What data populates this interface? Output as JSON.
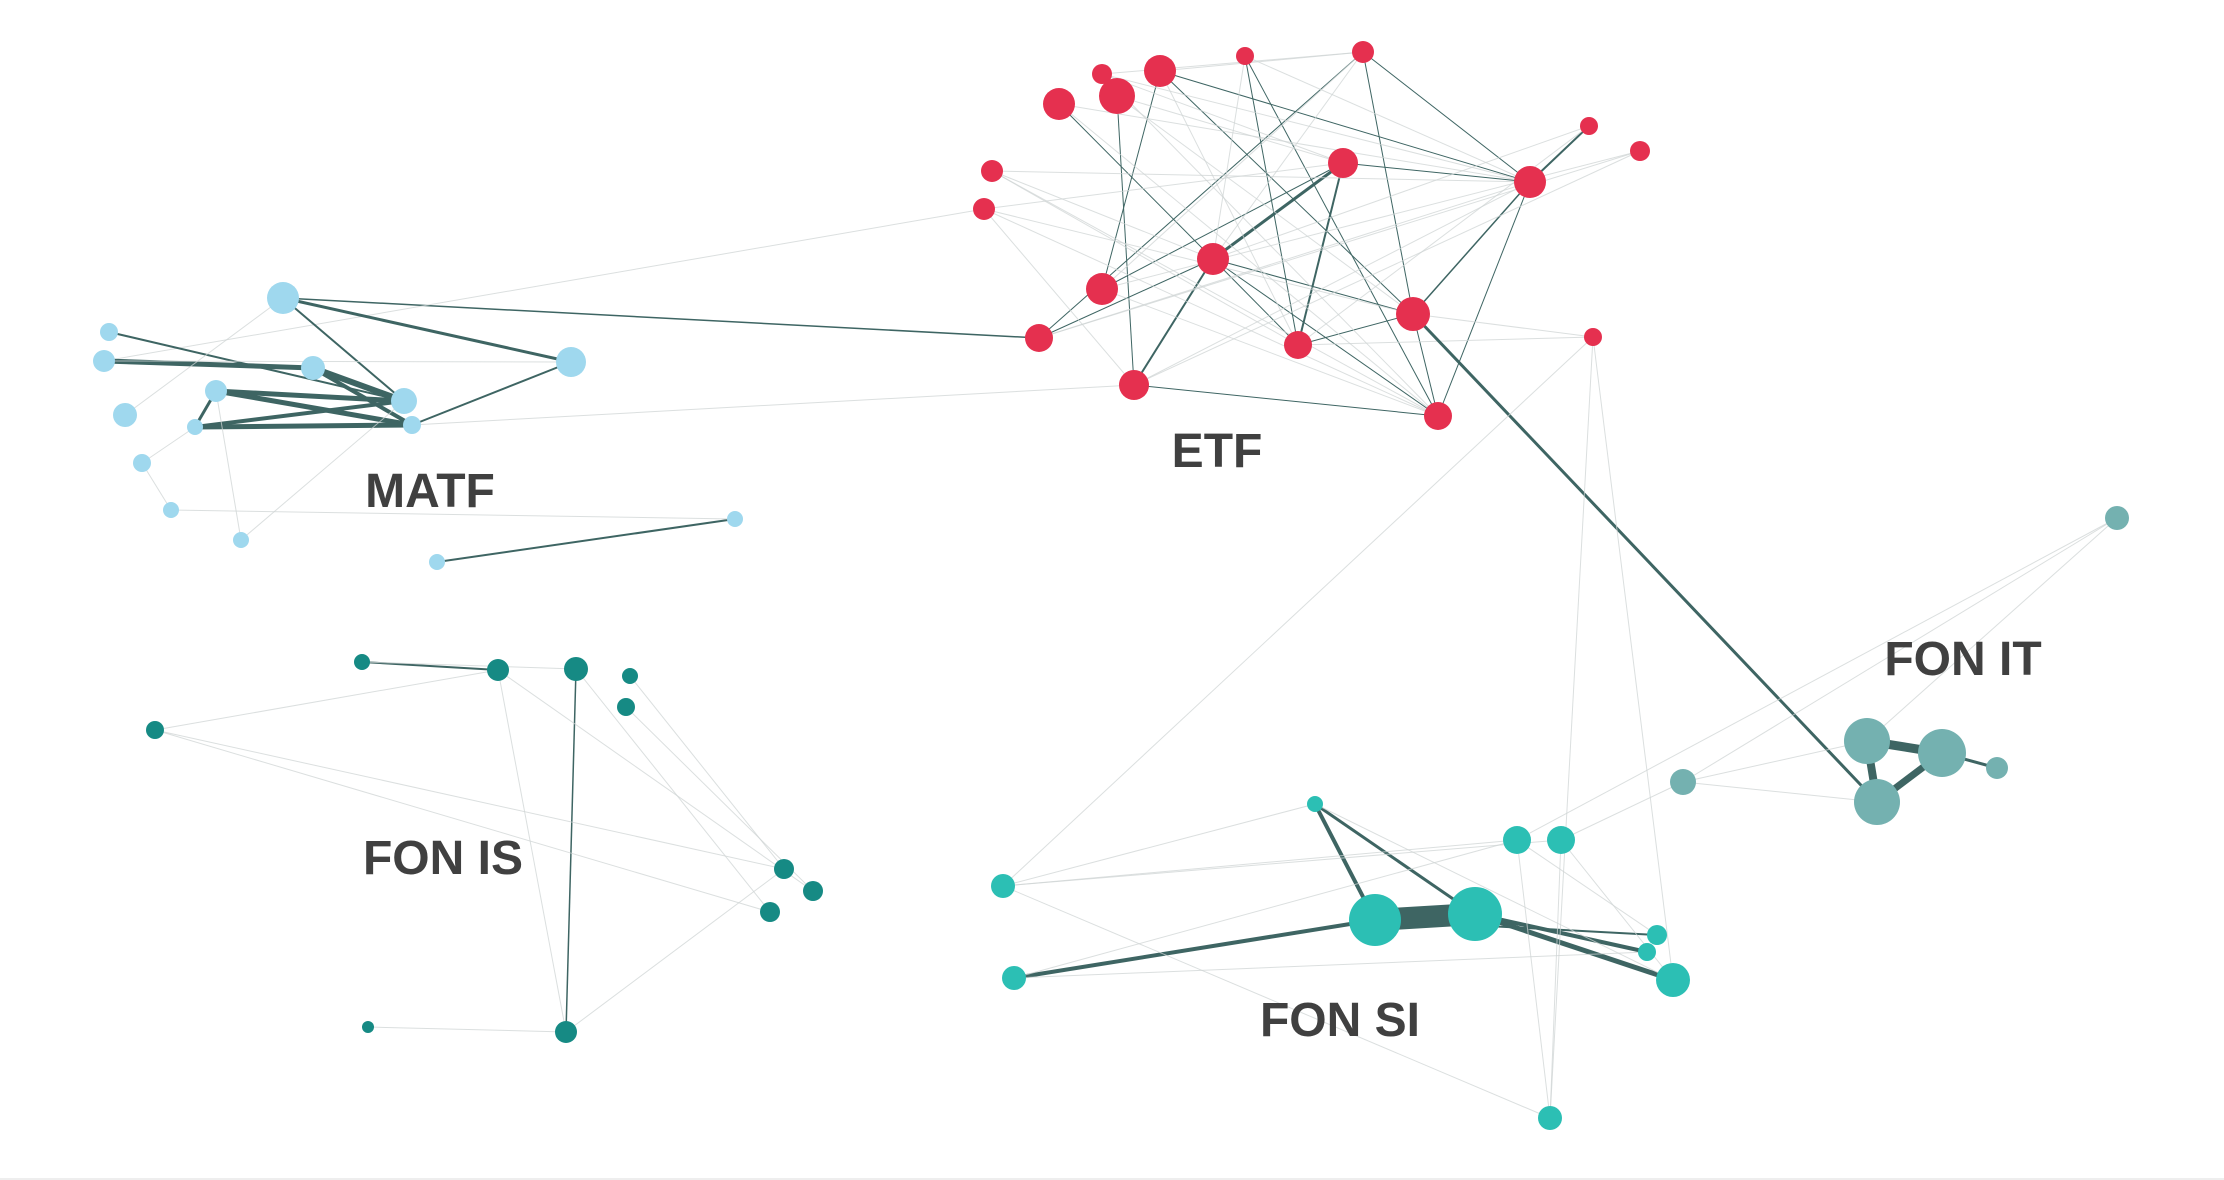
{
  "clusters": [
    {
      "key": "etf",
      "label": "ETF",
      "color": "#e5304f"
    },
    {
      "key": "matf",
      "label": "MATF",
      "color": "#9fd8ee"
    },
    {
      "key": "fonis",
      "label": "FON IS",
      "color": "#168a84"
    },
    {
      "key": "fonsi",
      "label": "FON SI",
      "color": "#2cbfb4"
    },
    {
      "key": "fonit",
      "label": "FON IT",
      "color": "#74b1b0"
    }
  ],
  "edge_colors": {
    "strong": "#3e6563",
    "weak": "#cfd4d4"
  }
}
